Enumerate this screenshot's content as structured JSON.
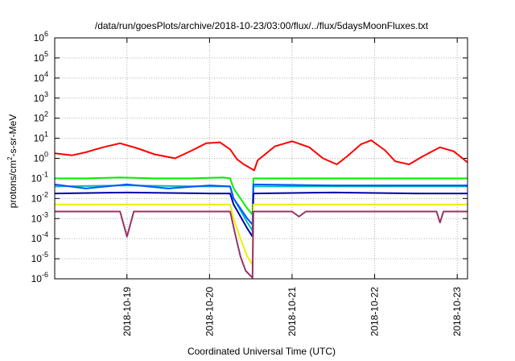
{
  "chart_data": {
    "type": "line",
    "title": "/data/run/goesPlots/archive/2018-10-23/03:00/flux/../flux/5daysMoonFluxes.txt",
    "xlabel": "Coordinated Universal Time (UTC)",
    "ylabel": {
      "base": "protons/cm",
      "sup": "2",
      "rest": "-s-sr-MeV"
    },
    "yscale": "log",
    "ylim": [
      -6,
      6
    ],
    "y_ticks": [
      {
        "base": "10",
        "exp": "-6"
      },
      {
        "base": "10",
        "exp": "-5"
      },
      {
        "base": "10",
        "exp": "-4"
      },
      {
        "base": "10",
        "exp": "-3"
      },
      {
        "base": "10",
        "exp": "-2"
      },
      {
        "base": "10",
        "exp": "-1"
      },
      {
        "base": "10",
        "exp": "0"
      },
      {
        "base": "10",
        "exp": "1"
      },
      {
        "base": "10",
        "exp": "2"
      },
      {
        "base": "10",
        "exp": "3"
      },
      {
        "base": "10",
        "exp": "4"
      },
      {
        "base": "10",
        "exp": "5"
      },
      {
        "base": "10",
        "exp": "6"
      }
    ],
    "xlim": [
      "2018-10-18T03:00",
      "2018-10-23T03:00"
    ],
    "x_ticks": [
      {
        "label": "2018-10-19",
        "x": "2018-10-19T00:00"
      },
      {
        "label": "2018-10-20",
        "x": "2018-10-20T00:00"
      },
      {
        "label": "2018-10-21",
        "x": "2018-10-21T00:00"
      },
      {
        "label": "2018-10-22",
        "x": "2018-10-22T00:00"
      },
      {
        "label": "2018-10-23",
        "x": "2018-10-23T00:00"
      }
    ],
    "grid": true,
    "legend": "none",
    "series": [
      {
        "color": "#ff0000",
        "points": [
          [
            "2018-10-18T03:00",
            0.25
          ],
          [
            "2018-10-18T08:00",
            0.15
          ],
          [
            "2018-10-18T12:00",
            0.3
          ],
          [
            "2018-10-18T17:00",
            0.55
          ],
          [
            "2018-10-18T22:00",
            0.75
          ],
          [
            "2018-10-19T03:00",
            0.5
          ],
          [
            "2018-10-19T08:00",
            0.2
          ],
          [
            "2018-10-19T14:00",
            0.0
          ],
          [
            "2018-10-19T19:00",
            0.4
          ],
          [
            "2018-10-19T23:00",
            0.75
          ],
          [
            "2018-10-20T03:00",
            0.8
          ],
          [
            "2018-10-20T06:00",
            0.45
          ],
          [
            "2018-10-20T08:00",
            -0.05
          ],
          [
            "2018-10-20T10:00",
            -0.3
          ],
          [
            "2018-10-20T12:00",
            -0.5
          ],
          [
            "2018-10-20T13:00",
            -0.6
          ],
          [
            "2018-10-20T14:00",
            -0.1
          ],
          [
            "2018-10-20T19:00",
            0.6
          ],
          [
            "2018-10-21T00:00",
            0.85
          ],
          [
            "2018-10-21T05:00",
            0.55
          ],
          [
            "2018-10-21T09:00",
            0.0
          ],
          [
            "2018-10-21T13:00",
            -0.3
          ],
          [
            "2018-10-21T16:00",
            0.1
          ],
          [
            "2018-10-21T20:00",
            0.7
          ],
          [
            "2018-10-21T23:00",
            0.9
          ],
          [
            "2018-10-22T03:00",
            0.4
          ],
          [
            "2018-10-22T06:00",
            -0.15
          ],
          [
            "2018-10-22T10:00",
            -0.3
          ],
          [
            "2018-10-22T14:00",
            0.1
          ],
          [
            "2018-10-22T19:00",
            0.55
          ],
          [
            "2018-10-22T23:00",
            0.35
          ],
          [
            "2018-10-23T03:00",
            -0.2
          ]
        ]
      },
      {
        "color": "#00ee00",
        "points": [
          [
            "2018-10-18T03:00",
            -1.0
          ],
          [
            "2018-10-18T12:00",
            -1.0
          ],
          [
            "2018-10-18T22:00",
            -0.95
          ],
          [
            "2018-10-19T08:00",
            -1.0
          ],
          [
            "2018-10-19T18:00",
            -1.0
          ],
          [
            "2018-10-20T04:00",
            -0.95
          ],
          [
            "2018-10-20T06:00",
            -1.0
          ],
          [
            "2018-10-20T07:00",
            -1.5
          ],
          [
            "2018-10-20T09:00",
            -2.0
          ],
          [
            "2018-10-20T11:00",
            -2.5
          ],
          [
            "2018-10-20T12:30",
            -2.8
          ],
          [
            "2018-10-20T12:45",
            -1.0
          ],
          [
            "2018-10-21T00:00",
            -1.0
          ],
          [
            "2018-10-21T12:00",
            -1.0
          ],
          [
            "2018-10-22T00:00",
            -1.0
          ],
          [
            "2018-10-22T12:00",
            -1.0
          ],
          [
            "2018-10-23T03:00",
            -1.0
          ]
        ]
      },
      {
        "color": "#00bbbb",
        "points": [
          [
            "2018-10-18T03:00",
            -1.4
          ],
          [
            "2018-10-19T00:00",
            -1.35
          ],
          [
            "2018-10-20T00:00",
            -1.4
          ],
          [
            "2018-10-20T06:00",
            -1.4
          ],
          [
            "2018-10-20T07:00",
            -2.0
          ],
          [
            "2018-10-20T09:00",
            -2.6
          ],
          [
            "2018-10-20T11:00",
            -3.2
          ],
          [
            "2018-10-20T12:30",
            -3.6
          ],
          [
            "2018-10-20T12:45",
            -1.4
          ],
          [
            "2018-10-21T12:00",
            -1.4
          ],
          [
            "2018-10-22T12:00",
            -1.4
          ],
          [
            "2018-10-23T03:00",
            -1.4
          ]
        ]
      },
      {
        "color": "#0055ff",
        "points": [
          [
            "2018-10-18T03:00",
            -1.3
          ],
          [
            "2018-10-18T12:00",
            -1.5
          ],
          [
            "2018-10-19T00:00",
            -1.3
          ],
          [
            "2018-10-19T12:00",
            -1.5
          ],
          [
            "2018-10-20T00:00",
            -1.35
          ],
          [
            "2018-10-20T06:00",
            -1.4
          ],
          [
            "2018-10-20T07:00",
            -2.0
          ],
          [
            "2018-10-20T09:00",
            -2.5
          ],
          [
            "2018-10-20T11:00",
            -3.0
          ],
          [
            "2018-10-20T12:30",
            -3.3
          ],
          [
            "2018-10-20T12:45",
            -1.3
          ],
          [
            "2018-10-21T12:00",
            -1.35
          ],
          [
            "2018-10-22T12:00",
            -1.35
          ],
          [
            "2018-10-23T03:00",
            -1.35
          ]
        ]
      },
      {
        "color": "#0000aa",
        "points": [
          [
            "2018-10-18T03:00",
            -1.75
          ],
          [
            "2018-10-19T00:00",
            -1.7
          ],
          [
            "2018-10-20T00:00",
            -1.75
          ],
          [
            "2018-10-20T06:00",
            -1.75
          ],
          [
            "2018-10-20T07:00",
            -2.3
          ],
          [
            "2018-10-20T09:00",
            -2.9
          ],
          [
            "2018-10-20T11:00",
            -3.5
          ],
          [
            "2018-10-20T12:30",
            -3.9
          ],
          [
            "2018-10-20T12:45",
            -1.75
          ],
          [
            "2018-10-21T12:00",
            -1.7
          ],
          [
            "2018-10-22T12:00",
            -1.75
          ],
          [
            "2018-10-23T03:00",
            -1.75
          ]
        ]
      },
      {
        "color": "#eeee00",
        "points": [
          [
            "2018-10-18T03:00",
            -2.3
          ],
          [
            "2018-10-19T12:00",
            -2.3
          ],
          [
            "2018-10-20T06:00",
            -2.3
          ],
          [
            "2018-10-20T07:00",
            -3.0
          ],
          [
            "2018-10-20T09:00",
            -4.0
          ],
          [
            "2018-10-20T11:00",
            -4.9
          ],
          [
            "2018-10-20T12:30",
            -5.3
          ],
          [
            "2018-10-20T12:45",
            -2.3
          ],
          [
            "2018-10-22T00:00",
            -2.3
          ],
          [
            "2018-10-23T03:00",
            -2.3
          ]
        ]
      },
      {
        "color": "#993366",
        "points": [
          [
            "2018-10-18T03:00",
            -2.65
          ],
          [
            "2018-10-18T22:00",
            -2.65
          ],
          [
            "2018-10-19T00:00",
            -3.9
          ],
          [
            "2018-10-19T02:00",
            -2.65
          ],
          [
            "2018-10-20T06:00",
            -2.65
          ],
          [
            "2018-10-20T07:30",
            -3.8
          ],
          [
            "2018-10-20T09:00",
            -4.9
          ],
          [
            "2018-10-20T10:30",
            -5.6
          ],
          [
            "2018-10-20T12:30",
            -5.95
          ],
          [
            "2018-10-20T12:45",
            -2.65
          ],
          [
            "2018-10-21T00:00",
            -2.65
          ],
          [
            "2018-10-21T02:00",
            -2.9
          ],
          [
            "2018-10-21T04:00",
            -2.65
          ],
          [
            "2018-10-22T00:00",
            -2.65
          ],
          [
            "2018-10-22T18:00",
            -2.65
          ],
          [
            "2018-10-22T19:00",
            -3.2
          ],
          [
            "2018-10-22T20:00",
            -2.65
          ],
          [
            "2018-10-23T03:00",
            -2.65
          ]
        ]
      }
    ]
  }
}
